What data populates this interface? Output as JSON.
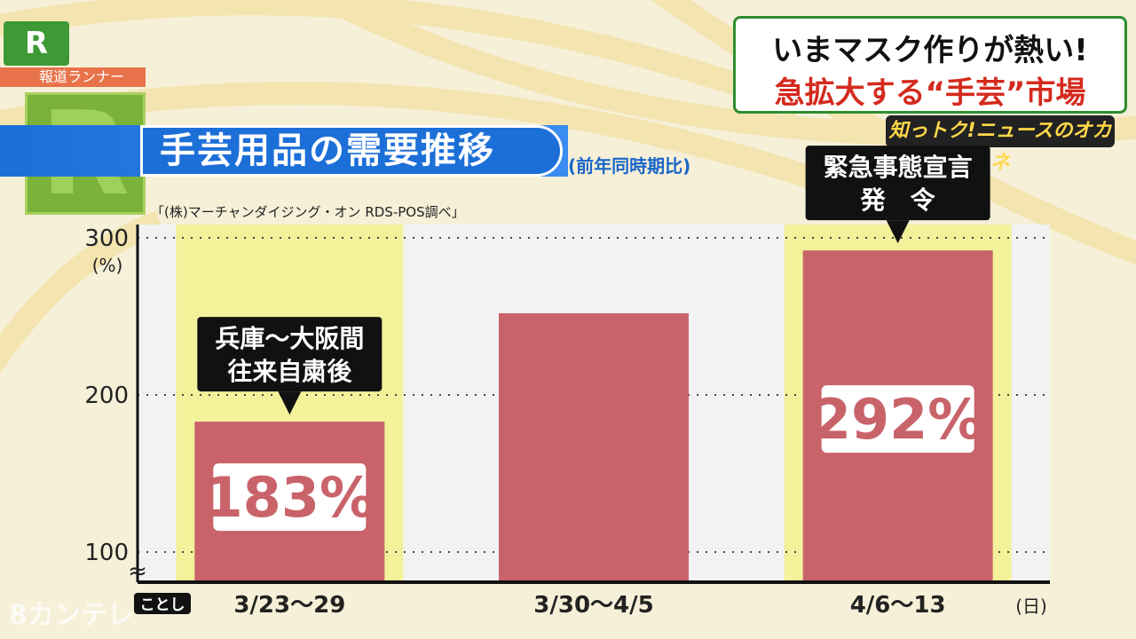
{
  "bug": {
    "logo": "R",
    "label": "報道ランナー"
  },
  "headline": {
    "line1": "いまマスク作りが熱い!",
    "line2": "急拡大する“手芸”市場"
  },
  "show_logo": "知っトク!ニュースのオカネ",
  "chart_data": {
    "type": "bar",
    "title": "手芸用品の需要推移",
    "subtitle": "(前年同時期比)",
    "source": "「(株)マーチャンダイジング・オン RDS-POS調べ」",
    "categories": [
      "3/23〜29",
      "3/30〜4/5",
      "4/6〜13"
    ],
    "values": [
      183,
      252,
      292
    ],
    "data_labels": [
      "183%",
      "",
      "292%"
    ],
    "highlighted": [
      true,
      false,
      true
    ],
    "yticks": [
      "300",
      "200",
      "100"
    ],
    "ytick_values": [
      300,
      200,
      100
    ],
    "ylim": [
      100,
      300
    ],
    "yunit": "(%)",
    "xunit": "(日)",
    "x_start_label": "ことし",
    "axis_break": "≈",
    "grid": true,
    "annotations": [
      {
        "category": 0,
        "lines": [
          "兵庫〜大阪間",
          "往来自粛後"
        ]
      },
      {
        "category": 2,
        "lines": [
          "緊急事態宣言",
          "発　令"
        ]
      }
    ]
  },
  "watermark": "8カンテレ",
  "colors": {
    "bar": "#c9636a",
    "highlight": "#f3f19a",
    "plot_bg": "#f2f2f2",
    "title_blue": "#1d6fd8",
    "callout": "#111111"
  }
}
